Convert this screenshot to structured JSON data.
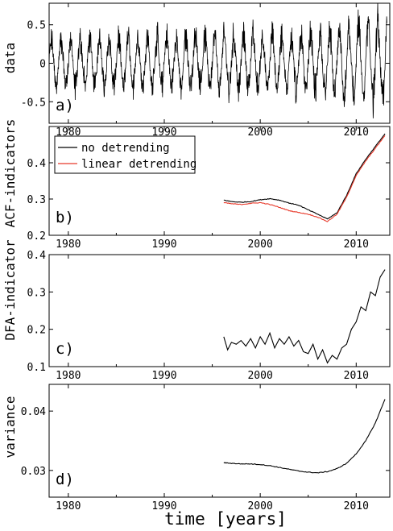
{
  "chart_data": [
    {
      "panel_label": "a)",
      "type": "line",
      "ylabel": "data",
      "xlim": [
        1978,
        2013.5
      ],
      "ylim": [
        -0.78,
        0.78
      ],
      "xticks": [
        1980,
        1990,
        2000,
        2010
      ],
      "xtick_labels": [
        "1980",
        "1990",
        "2000",
        "2010"
      ],
      "yticks": [
        -0.5,
        0,
        0.5
      ],
      "ytick_labels": [
        "-0.5",
        "0",
        "0.5"
      ],
      "series": [
        {
          "color": "#000000",
          "x_start": 1978.0,
          "x_end": 2013.2,
          "envelope_x": [
            1978,
            1985,
            1990,
            1995,
            2000,
            2005,
            2008,
            2010,
            2011.5,
            2013
          ],
          "envelope_upper": [
            0.42,
            0.48,
            0.5,
            0.5,
            0.52,
            0.55,
            0.6,
            0.68,
            0.72,
            0.75
          ],
          "envelope_lower": [
            -0.4,
            -0.42,
            -0.42,
            -0.43,
            -0.45,
            -0.5,
            -0.55,
            -0.62,
            -0.66,
            -0.68
          ]
        }
      ]
    },
    {
      "panel_label": "b)",
      "type": "line",
      "ylabel": "ACF-indicators",
      "xlim": [
        1978,
        2013.5
      ],
      "ylim": [
        0.2,
        0.5
      ],
      "xticks": [
        1980,
        1990,
        2000,
        2010
      ],
      "xtick_labels": [
        "1980",
        "1990",
        "2000",
        "2010"
      ],
      "yticks": [
        0.2,
        0.3,
        0.4
      ],
      "ytick_labels": [
        "0.2",
        "0.3",
        "0.4"
      ],
      "legend_position": "top-left",
      "series": [
        {
          "name": "no detrending",
          "color": "#000000",
          "x": [
            1996.2,
            1997,
            1998,
            1999,
            2000,
            2001,
            2002,
            2003,
            2004,
            2005,
            2006,
            2007,
            2008,
            2009,
            2010,
            2011,
            2012,
            2013
          ],
          "y": [
            0.297,
            0.293,
            0.291,
            0.293,
            0.298,
            0.301,
            0.297,
            0.289,
            0.283,
            0.27,
            0.258,
            0.245,
            0.262,
            0.31,
            0.37,
            0.41,
            0.445,
            0.48
          ]
        },
        {
          "name": "linear detrending",
          "color": "#e8392a",
          "x": [
            1996.2,
            1997,
            1998,
            1999,
            2000,
            2001,
            2002,
            2003,
            2004,
            2005,
            2006,
            2007,
            2008,
            2009,
            2010,
            2011,
            2012,
            2013
          ],
          "y": [
            0.29,
            0.287,
            0.285,
            0.288,
            0.29,
            0.285,
            0.277,
            0.268,
            0.263,
            0.258,
            0.25,
            0.238,
            0.258,
            0.305,
            0.365,
            0.405,
            0.44,
            0.475
          ]
        }
      ]
    },
    {
      "panel_label": "c)",
      "type": "line",
      "ylabel": "DFA-indicator",
      "xlim": [
        1978,
        2013.5
      ],
      "ylim": [
        0.1,
        0.4
      ],
      "xticks": [
        1980,
        1990,
        2000,
        2010
      ],
      "xtick_labels": [
        "1980",
        "1990",
        "2000",
        "2010"
      ],
      "yticks": [
        0.1,
        0.2,
        0.3,
        0.4
      ],
      "ytick_labels": [
        "0.1",
        "0.2",
        "0.3",
        "0.4"
      ],
      "series": [
        {
          "color": "#000000",
          "x": [
            1996.2,
            1996.6,
            1997,
            1997.5,
            1998,
            1998.5,
            1999,
            1999.5,
            2000,
            2000.5,
            2001,
            2001.5,
            2002,
            2002.5,
            2003,
            2003.5,
            2004,
            2004.5,
            2005,
            2005.5,
            2006,
            2006.5,
            2007,
            2007.5,
            2008,
            2008.5,
            2009,
            2009.5,
            2010,
            2010.5,
            2011,
            2011.5,
            2012,
            2012.5,
            2013
          ],
          "y": [
            0.18,
            0.145,
            0.165,
            0.16,
            0.17,
            0.155,
            0.175,
            0.15,
            0.18,
            0.16,
            0.19,
            0.15,
            0.175,
            0.16,
            0.18,
            0.155,
            0.17,
            0.14,
            0.135,
            0.16,
            0.12,
            0.145,
            0.11,
            0.13,
            0.12,
            0.15,
            0.16,
            0.2,
            0.22,
            0.26,
            0.25,
            0.3,
            0.29,
            0.34,
            0.36
          ]
        }
      ]
    },
    {
      "panel_label": "d)",
      "type": "line",
      "ylabel": "variance",
      "xlabel": "time [years]",
      "xlim": [
        1978,
        2013.5
      ],
      "ylim": [
        0.0255,
        0.0445
      ],
      "xticks": [
        1980,
        1990,
        2000,
        2010
      ],
      "xtick_labels": [
        "1980",
        "1990",
        "2000",
        "2010"
      ],
      "yticks": [
        0.03,
        0.04
      ],
      "ytick_labels": [
        "0.03",
        "0.04"
      ],
      "series": [
        {
          "color": "#000000",
          "x": [
            1996.2,
            1997,
            1998,
            1999,
            2000,
            2001,
            2002,
            2003,
            2004,
            2005,
            2006,
            2007,
            2008,
            2009,
            2010,
            2011,
            2012,
            2013
          ],
          "y": [
            0.0313,
            0.0312,
            0.0311,
            0.0311,
            0.031,
            0.0308,
            0.0305,
            0.0302,
            0.0299,
            0.0297,
            0.0296,
            0.0298,
            0.0303,
            0.0312,
            0.0328,
            0.035,
            0.038,
            0.042
          ]
        }
      ]
    }
  ]
}
